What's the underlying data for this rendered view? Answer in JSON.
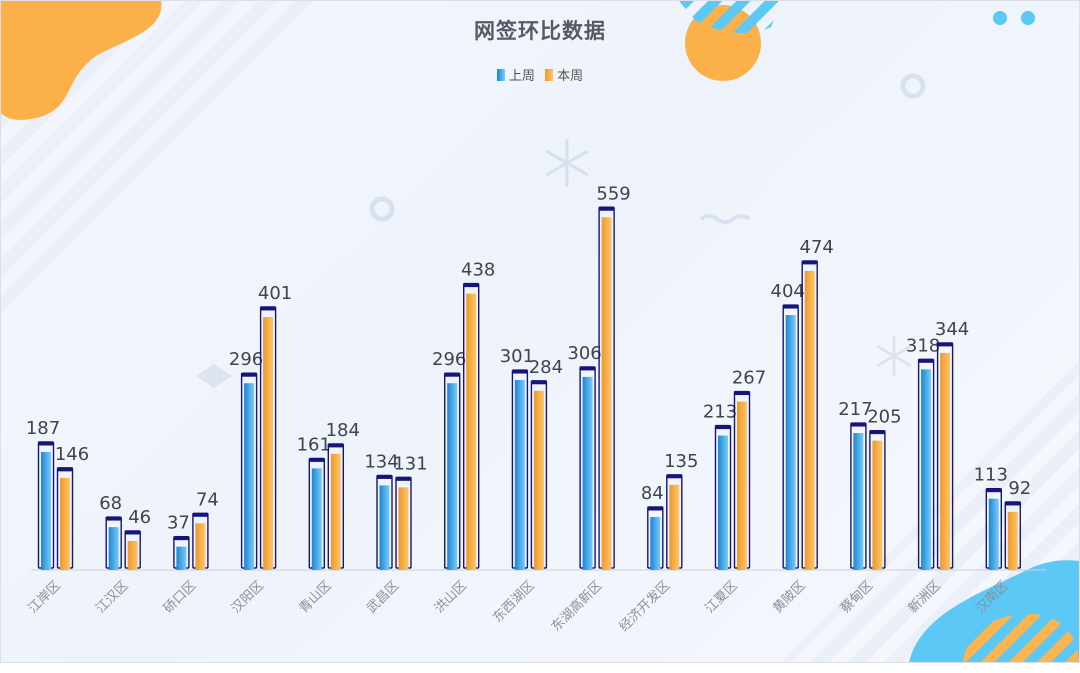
{
  "chart_data": {
    "type": "bar",
    "title": "网签环比数据",
    "categories": [
      "江岸区",
      "江汉区",
      "硚口区",
      "汉阳区",
      "青山区",
      "武昌区",
      "洪山区",
      "东西湖区",
      "东湖高新区",
      "经济开发区",
      "江夏区",
      "黄陂区",
      "蔡甸区",
      "新洲区",
      "汉南区"
    ],
    "series": [
      {
        "name": "上周",
        "values": [
          187,
          68,
          37,
          296,
          161,
          134,
          296,
          301,
          306,
          84,
          213,
          404,
          217,
          318,
          113
        ]
      },
      {
        "name": "本周",
        "values": [
          146,
          46,
          74,
          401,
          184,
          131,
          438,
          284,
          559,
          135,
          267,
          474,
          205,
          344,
          92
        ]
      }
    ],
    "ylim": [
      0,
      600
    ],
    "grid": false,
    "legend_position": "top-center",
    "colors": {
      "上周": "#4aaee8",
      "本周": "#f5a73c",
      "outline": "#16157a",
      "title": "#555a66"
    }
  }
}
